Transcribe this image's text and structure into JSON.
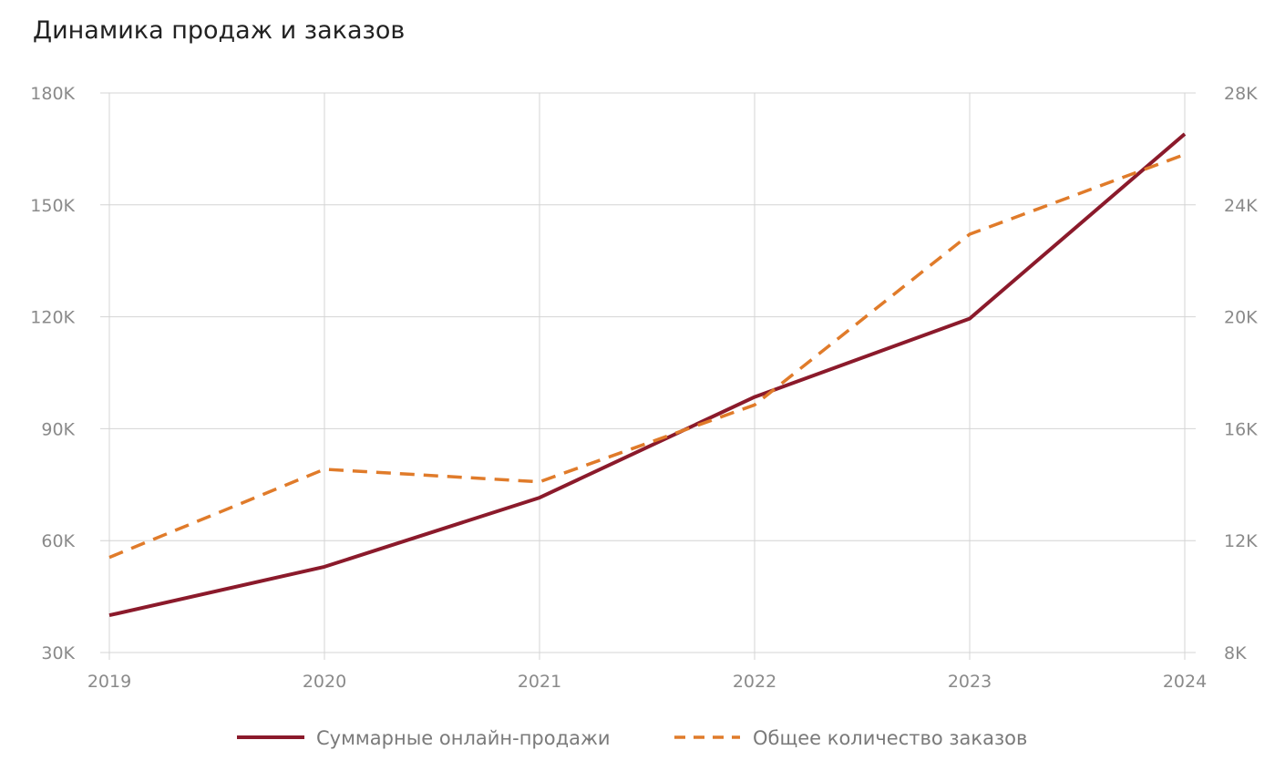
{
  "chart_data": {
    "type": "line",
    "title": "Динамика продаж и заказов",
    "categories": [
      "2019",
      "2020",
      "2021",
      "2022",
      "2023",
      "2024"
    ],
    "left_axis": {
      "ylim": [
        30000,
        180000
      ],
      "ticks": [
        30000,
        60000,
        90000,
        120000,
        150000,
        180000
      ],
      "tick_labels": [
        "30K",
        "60K",
        "90K",
        "120K",
        "150K",
        "180K"
      ]
    },
    "right_axis": {
      "ylim": [
        8000,
        28000
      ],
      "ticks": [
        8000,
        12000,
        16000,
        20000,
        24000,
        28000
      ],
      "tick_labels": [
        "8K",
        "12K",
        "16K",
        "20K",
        "24K",
        "28K"
      ]
    },
    "series": [
      {
        "name": "Суммарные онлайн-продажи",
        "axis": "left",
        "style": "solid",
        "color": "#8b1a2b",
        "values": [
          40000,
          53000,
          71500,
          98500,
          119500,
          169000
        ]
      },
      {
        "name": "Общее количество заказов",
        "axis": "right",
        "style": "dashed",
        "color": "#e07b2a",
        "values": [
          11400,
          14550,
          14100,
          16850,
          22950,
          25800
        ]
      }
    ],
    "grid": true,
    "legend": "bottom-center",
    "xlabel": "",
    "ylabel": ""
  }
}
